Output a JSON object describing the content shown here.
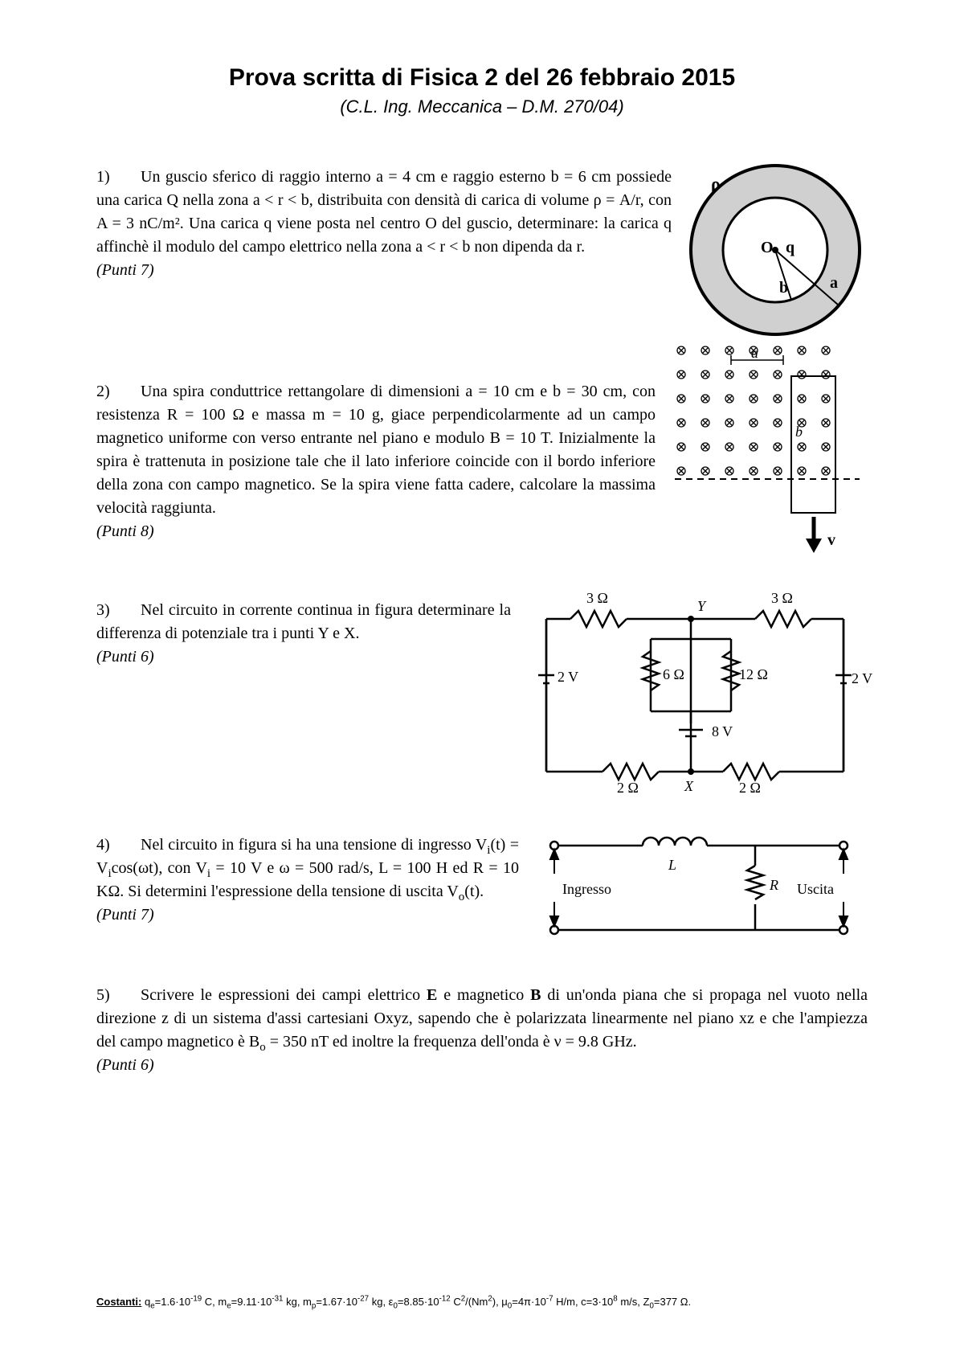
{
  "title": "Prova scritta di Fisica 2 del 26 febbraio 2015",
  "subtitle": "(C.L. Ing. Meccanica – D.M. 270/04)",
  "problems": {
    "p1": {
      "num": "1)",
      "text": "Un guscio sferico di raggio interno  a = 4 cm e raggio esterno b = 6 cm possiede una carica Q nella zona a < r < b, distribuita con densità di carica di volume ρ = A/r, con A = 3 nC/m². Una carica q viene posta nel centro O del guscio, determinare: la carica q affinchè il modulo del campo elettrico nella zona a < r < b non dipenda da r.",
      "points": "(Punti 7)"
    },
    "p2": {
      "num": "2)",
      "text": "Una spira conduttrice rettangolare di dimensioni a = 10 cm e b = 30 cm, con resistenza R = 100 Ω e massa m = 10 g, giace perpendicolarmente ad un campo magnetico uniforme con verso entrante nel piano e modulo B = 10 T. Inizialmente la spira è trattenuta in posizione tale che il lato inferiore coincide con il bordo inferiore della zona con campo magnetico. Se la spira viene fatta cadere, calcolare la massima velocità raggiunta.",
      "points": "(Punti 8)"
    },
    "p3": {
      "num": "3)",
      "text": "Nel circuito in corrente continua in figura determinare la differenza di potenziale tra i punti Y e X.",
      "points": "(Punti 6)"
    },
    "p4": {
      "num": "4)",
      "text_html": "Nel circuito in figura si ha una tensione di ingresso V<sub>i</sub>(t) = V<sub>i</sub>cos(ωt), con V<sub>i</sub> = 10 V e ω = 500 rad/s, L = 100 H ed R = 10 KΩ. Si determini l'espressione della tensione di uscita V<sub>o</sub>(t).",
      "points": "(Punti 7)"
    },
    "p5": {
      "num": "5)",
      "text_html": "Scrivere le espressioni dei campi elettrico <b>E</b> e magnetico <b>B</b> di un'onda piana che si propaga nel vuoto nella direzione z di un sistema d'assi cartesiani Oxyz, sapendo che è polarizzata linearmente nel piano xz e che l'ampiezza del campo magnetico è B<sub>o</sub> = 350 nT ed inoltre la frequenza dell'onda è ν = 9.8 GHz.",
      "points": "(Punti 6)"
    }
  },
  "figures": {
    "sphere": {
      "rho": "ρ",
      "O": "O",
      "q": "q",
      "a": "a",
      "b": "b",
      "outer_fill": "#d0d0d0",
      "stroke": "#000",
      "bg": "#fff"
    },
    "loop": {
      "a": "a",
      "b": "b",
      "v": "v",
      "rows": 6,
      "cols": 7,
      "step": 30,
      "symbol_color": "#000"
    },
    "circuit3": {
      "r_top_left": "3 Ω",
      "r_top_right": "3 Ω",
      "v_left": "2 V",
      "r_mid_left": "6 Ω",
      "r_mid_right": "12 Ω",
      "v_right": "2 V",
      "v_center": "8 V",
      "r_bot_left": "2 Ω",
      "r_bot_right": "2 Ω",
      "Y": "Y",
      "X": "X"
    },
    "circuit4": {
      "L": "L",
      "R": "R",
      "in": "Ingresso",
      "out": "Uscita"
    }
  },
  "constants": {
    "label": "Costanti:",
    "text_html": " q<sub>e</sub>=1.6·10<sup>-19</sup> C, m<sub>e</sub>=9.11·10<sup>-31</sup> kg, m<sub>p</sub>=1.67·10<sup>-27</sup> kg, ε<sub>0</sub>=8.85·10<sup>-12</sup> C<sup>2</sup>/(Nm<sup>2</sup>), μ<sub>0</sub>=4π·10<sup>-7</sup> H/m, c=3·10<sup>8</sup> m/s, Z<sub>0</sub>=377 Ω."
  }
}
